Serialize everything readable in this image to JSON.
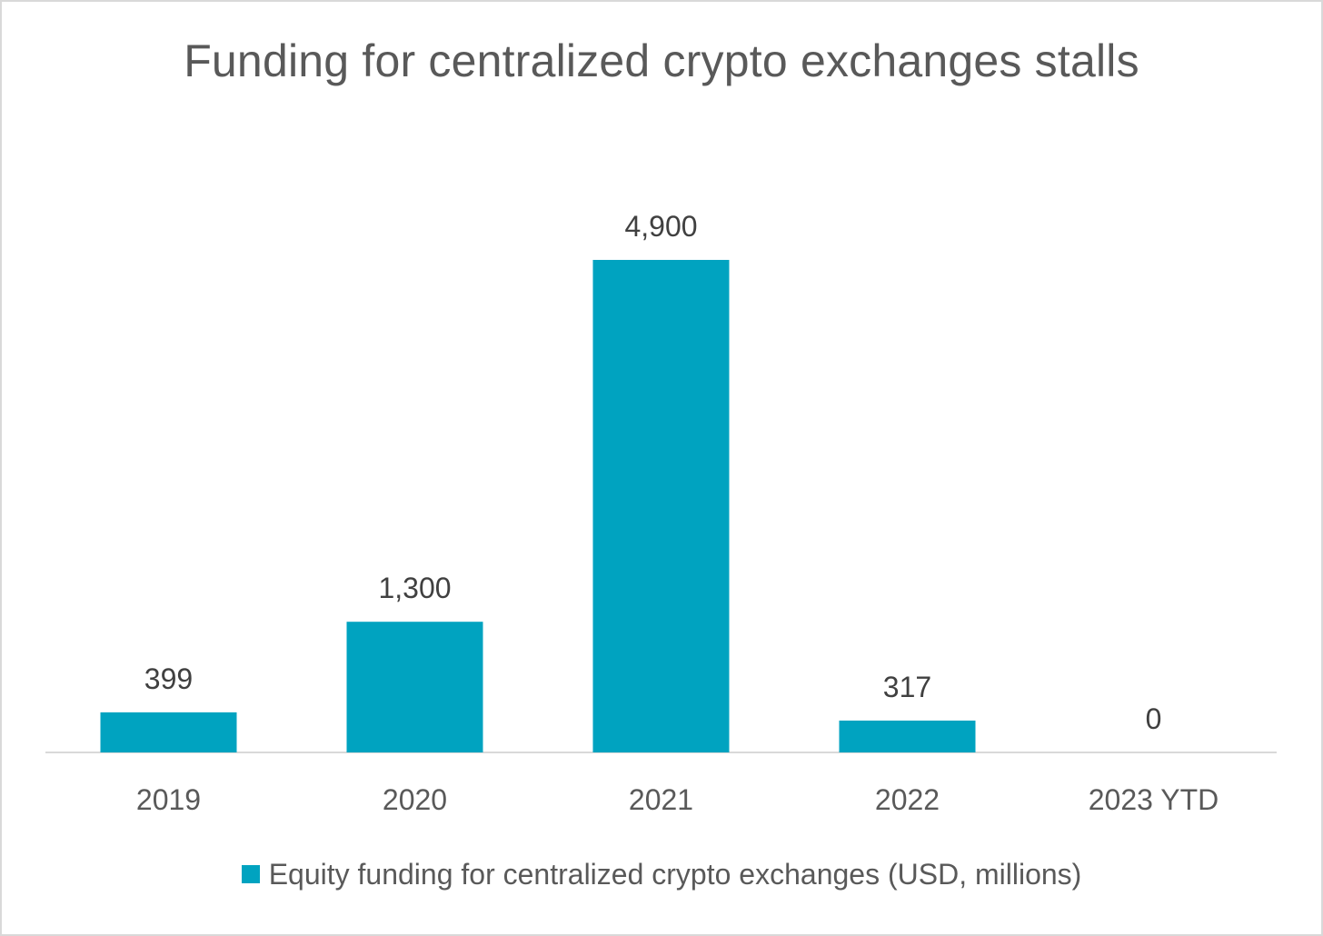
{
  "chart_data": {
    "type": "bar",
    "title": "Funding for centralized crypto exchanges stalls",
    "categories": [
      "2019",
      "2020",
      "2021",
      "2022",
      "2023 YTD"
    ],
    "series": [
      {
        "name": "Equity funding for centralized crypto exchanges (USD, millions)",
        "values": [
          399,
          1300,
          4900,
          317,
          0
        ],
        "labels": [
          "399",
          "1,300",
          "4,900",
          "317",
          "0"
        ],
        "color": "#00a3c0"
      }
    ],
    "ylim": [
      0,
      4900
    ],
    "grid": false,
    "legend_position": "bottom"
  }
}
